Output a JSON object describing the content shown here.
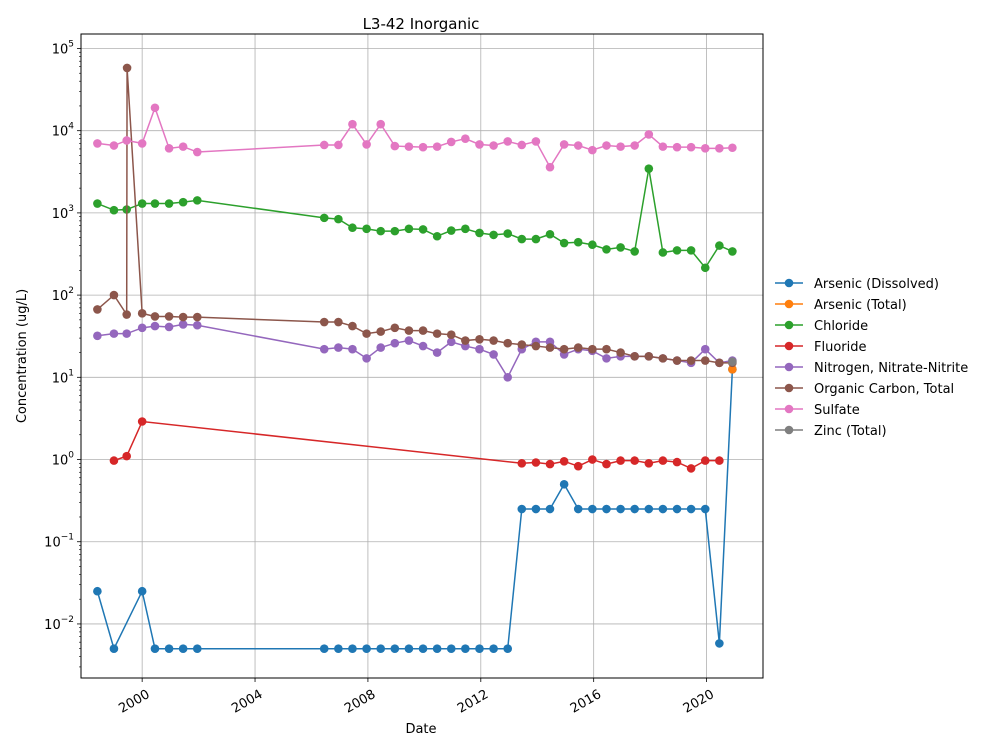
{
  "chart_data": {
    "type": "line",
    "title": "L3-42 Inorganic",
    "xlabel": "Date",
    "ylabel": "Concentration (ug/L)",
    "y_scale": "log",
    "ylim": [
      0.0022,
      150000
    ],
    "xlim": [
      "1997-11-01",
      "2022-01-01"
    ],
    "grid": true,
    "legend_position": "right",
    "x_tick_labels": [
      "2000",
      "2004",
      "2008",
      "2012",
      "2016",
      "2020"
    ],
    "y_tick_labels": [
      {
        "base": "10",
        "exp": "−2"
      },
      {
        "base": "10",
        "exp": "−1"
      },
      {
        "base": "10",
        "exp": "0"
      },
      {
        "base": "10",
        "exp": "1"
      },
      {
        "base": "10",
        "exp": "2"
      },
      {
        "base": "10",
        "exp": "3"
      },
      {
        "base": "10",
        "exp": "4"
      },
      {
        "base": "10",
        "exp": "5"
      }
    ],
    "series": [
      {
        "name": "Arsenic (Dissolved)",
        "color": "#1f77b4",
        "points": [
          [
            "1998-06-01",
            0.025
          ],
          [
            "1999-01-01",
            0.005
          ],
          [
            "2000-01-01",
            0.025
          ],
          [
            "2000-06-15",
            0.005
          ],
          [
            "2000-12-15",
            0.005
          ],
          [
            "2001-06-15",
            0.005
          ],
          [
            "2001-12-15",
            0.005
          ],
          [
            "2006-06-15",
            0.005
          ],
          [
            "2006-12-15",
            0.005
          ],
          [
            "2007-06-15",
            0.005
          ],
          [
            "2007-12-15",
            0.005
          ],
          [
            "2008-06-15",
            0.005
          ],
          [
            "2008-12-15",
            0.005
          ],
          [
            "2009-06-15",
            0.005
          ],
          [
            "2009-12-15",
            0.005
          ],
          [
            "2010-06-15",
            0.005
          ],
          [
            "2010-12-15",
            0.005
          ],
          [
            "2011-06-15",
            0.005
          ],
          [
            "2011-12-15",
            0.005
          ],
          [
            "2012-06-15",
            0.005
          ],
          [
            "2012-12-15",
            0.005
          ],
          [
            "2013-06-15",
            0.25
          ],
          [
            "2013-12-15",
            0.25
          ],
          [
            "2014-06-15",
            0.25
          ],
          [
            "2014-12-15",
            0.5
          ],
          [
            "2015-06-15",
            0.25
          ],
          [
            "2015-12-15",
            0.25
          ],
          [
            "2016-06-15",
            0.25
          ],
          [
            "2016-12-15",
            0.25
          ],
          [
            "2017-06-15",
            0.25
          ],
          [
            "2017-12-15",
            0.25
          ],
          [
            "2018-06-15",
            0.25
          ],
          [
            "2018-12-15",
            0.25
          ],
          [
            "2019-06-15",
            0.25
          ],
          [
            "2019-12-15",
            0.25
          ],
          [
            "2020-06-15",
            0.0058
          ],
          [
            "2020-12-01",
            12.5
          ]
        ]
      },
      {
        "name": "Arsenic (Total)",
        "color": "#ff7f0e",
        "points": [
          [
            "2020-12-01",
            12.5
          ]
        ]
      },
      {
        "name": "Chloride",
        "color": "#2ca02c",
        "points": [
          [
            "1998-06-01",
            1300
          ],
          [
            "1999-01-01",
            1080
          ],
          [
            "1999-06-15",
            1100
          ],
          [
            "2000-01-01",
            1300
          ],
          [
            "2000-06-15",
            1300
          ],
          [
            "2000-12-15",
            1300
          ],
          [
            "2001-06-15",
            1350
          ],
          [
            "2001-12-15",
            1420
          ],
          [
            "2006-06-15",
            870
          ],
          [
            "2006-12-15",
            840
          ],
          [
            "2007-06-15",
            660
          ],
          [
            "2007-12-15",
            640
          ],
          [
            "2008-06-15",
            600
          ],
          [
            "2008-12-15",
            600
          ],
          [
            "2009-06-15",
            640
          ],
          [
            "2009-12-15",
            630
          ],
          [
            "2010-06-15",
            520
          ],
          [
            "2010-12-15",
            610
          ],
          [
            "2011-06-15",
            640
          ],
          [
            "2011-12-15",
            570
          ],
          [
            "2012-06-15",
            540
          ],
          [
            "2012-12-15",
            560
          ],
          [
            "2013-06-15",
            480
          ],
          [
            "2013-12-15",
            480
          ],
          [
            "2014-06-15",
            550
          ],
          [
            "2014-12-15",
            430
          ],
          [
            "2015-06-15",
            440
          ],
          [
            "2015-12-15",
            410
          ],
          [
            "2016-06-15",
            360
          ],
          [
            "2016-12-15",
            380
          ],
          [
            "2017-06-15",
            340
          ],
          [
            "2017-12-15",
            3450
          ],
          [
            "2018-06-15",
            330
          ],
          [
            "2018-12-15",
            350
          ],
          [
            "2019-06-15",
            350
          ],
          [
            "2019-12-15",
            215
          ],
          [
            "2020-06-15",
            400
          ],
          [
            "2020-12-01",
            340
          ]
        ]
      },
      {
        "name": "Fluoride",
        "color": "#d62728",
        "points": [
          [
            "1999-01-01",
            0.97
          ],
          [
            "1999-06-15",
            1.1
          ],
          [
            "2000-01-01",
            2.9
          ],
          [
            "2013-06-15",
            0.9
          ],
          [
            "2013-12-15",
            0.92
          ],
          [
            "2014-06-15",
            0.88
          ],
          [
            "2014-12-15",
            0.95
          ],
          [
            "2015-06-15",
            0.83
          ],
          [
            "2015-12-15",
            1.0
          ],
          [
            "2016-06-15",
            0.88
          ],
          [
            "2016-12-15",
            0.97
          ],
          [
            "2017-06-15",
            0.97
          ],
          [
            "2017-12-15",
            0.9
          ],
          [
            "2018-06-15",
            0.97
          ],
          [
            "2018-12-15",
            0.93
          ],
          [
            "2019-06-15",
            0.78
          ],
          [
            "2019-12-15",
            0.97
          ],
          [
            "2020-06-15",
            0.97
          ]
        ]
      },
      {
        "name": "Nitrogen, Nitrate-Nitrite",
        "color": "#9467bd",
        "points": [
          [
            "1998-06-01",
            32
          ],
          [
            "1999-01-01",
            34
          ],
          [
            "1999-06-15",
            34
          ],
          [
            "2000-01-01",
            40
          ],
          [
            "2000-06-15",
            42
          ],
          [
            "2000-12-15",
            41
          ],
          [
            "2001-06-15",
            44
          ],
          [
            "2001-12-15",
            43
          ],
          [
            "2006-06-15",
            22
          ],
          [
            "2006-12-15",
            23
          ],
          [
            "2007-06-15",
            22
          ],
          [
            "2007-12-15",
            17
          ],
          [
            "2008-06-15",
            23
          ],
          [
            "2008-12-15",
            26
          ],
          [
            "2009-06-15",
            28
          ],
          [
            "2009-12-15",
            24
          ],
          [
            "2010-06-15",
            20
          ],
          [
            "2010-12-15",
            27
          ],
          [
            "2011-06-15",
            24
          ],
          [
            "2011-12-15",
            22
          ],
          [
            "2012-06-15",
            19
          ],
          [
            "2012-12-15",
            10
          ],
          [
            "2013-06-15",
            22
          ],
          [
            "2013-12-15",
            27
          ],
          [
            "2014-06-15",
            27
          ],
          [
            "2014-12-15",
            19
          ],
          [
            "2015-06-15",
            22
          ],
          [
            "2015-12-15",
            21
          ],
          [
            "2016-06-15",
            17
          ],
          [
            "2016-12-15",
            18
          ],
          [
            "2017-06-15",
            18
          ],
          [
            "2017-12-15",
            18
          ],
          [
            "2018-06-15",
            17
          ],
          [
            "2018-12-15",
            16
          ],
          [
            "2019-06-15",
            15
          ],
          [
            "2019-12-15",
            22
          ],
          [
            "2020-06-15",
            15
          ],
          [
            "2020-12-01",
            16
          ]
        ]
      },
      {
        "name": "Organic Carbon, Total",
        "color": "#8c564b",
        "points": [
          [
            "1998-06-01",
            67
          ],
          [
            "1999-01-01",
            100
          ],
          [
            "1999-06-15",
            58
          ],
          [
            "1999-06-20",
            58000
          ],
          [
            "2000-01-01",
            60
          ],
          [
            "2000-06-15",
            55
          ],
          [
            "2000-12-15",
            55
          ],
          [
            "2001-06-15",
            54
          ],
          [
            "2001-12-15",
            54
          ],
          [
            "2006-06-15",
            47
          ],
          [
            "2006-12-15",
            47
          ],
          [
            "2007-06-15",
            42
          ],
          [
            "2007-12-15",
            34
          ],
          [
            "2008-06-15",
            36
          ],
          [
            "2008-12-15",
            40
          ],
          [
            "2009-06-15",
            37
          ],
          [
            "2009-12-15",
            37
          ],
          [
            "2010-06-15",
            34
          ],
          [
            "2010-12-15",
            33
          ],
          [
            "2011-06-15",
            28
          ],
          [
            "2011-12-15",
            29
          ],
          [
            "2012-06-15",
            28
          ],
          [
            "2012-12-15",
            26
          ],
          [
            "2013-06-15",
            25
          ],
          [
            "2013-12-15",
            24
          ],
          [
            "2014-06-15",
            23
          ],
          [
            "2014-12-15",
            22
          ],
          [
            "2015-06-15",
            23
          ],
          [
            "2015-12-15",
            22
          ],
          [
            "2016-06-15",
            22
          ],
          [
            "2016-12-15",
            20
          ],
          [
            "2017-06-15",
            18
          ],
          [
            "2017-12-15",
            18
          ],
          [
            "2018-06-15",
            17
          ],
          [
            "2018-12-15",
            16
          ],
          [
            "2019-06-15",
            16
          ],
          [
            "2019-12-15",
            16
          ],
          [
            "2020-06-15",
            15
          ],
          [
            "2020-12-01",
            15
          ]
        ]
      },
      {
        "name": "Sulfate",
        "color": "#e377c2",
        "points": [
          [
            "1998-06-01",
            7000
          ],
          [
            "1999-01-01",
            6600
          ],
          [
            "1999-06-15",
            7600
          ],
          [
            "2000-01-01",
            7000
          ],
          [
            "2000-06-15",
            19000
          ],
          [
            "2000-12-15",
            6100
          ],
          [
            "2001-06-15",
            6400
          ],
          [
            "2001-12-15",
            5500
          ],
          [
            "2006-06-15",
            6700
          ],
          [
            "2006-12-15",
            6700
          ],
          [
            "2007-06-15",
            12000
          ],
          [
            "2007-12-15",
            6800
          ],
          [
            "2008-06-15",
            12000
          ],
          [
            "2008-12-15",
            6500
          ],
          [
            "2009-06-15",
            6400
          ],
          [
            "2009-12-15",
            6300
          ],
          [
            "2010-06-15",
            6400
          ],
          [
            "2010-12-15",
            7300
          ],
          [
            "2011-06-15",
            8000
          ],
          [
            "2011-12-15",
            6800
          ],
          [
            "2012-06-15",
            6600
          ],
          [
            "2012-12-15",
            7400
          ],
          [
            "2013-06-15",
            6700
          ],
          [
            "2013-12-15",
            7400
          ],
          [
            "2014-06-15",
            3600
          ],
          [
            "2014-12-15",
            6800
          ],
          [
            "2015-06-15",
            6600
          ],
          [
            "2015-12-15",
            5800
          ],
          [
            "2016-06-15",
            6600
          ],
          [
            "2016-12-15",
            6400
          ],
          [
            "2017-06-15",
            6600
          ],
          [
            "2017-12-15",
            9000
          ],
          [
            "2018-06-15",
            6400
          ],
          [
            "2018-12-15",
            6300
          ],
          [
            "2019-06-15",
            6300
          ],
          [
            "2019-12-15",
            6100
          ],
          [
            "2020-06-15",
            6100
          ],
          [
            "2020-12-01",
            6200
          ]
        ]
      },
      {
        "name": "Zinc (Total)",
        "color": "#7f7f7f",
        "points": [
          [
            "2020-12-01",
            15.5
          ]
        ]
      }
    ]
  }
}
